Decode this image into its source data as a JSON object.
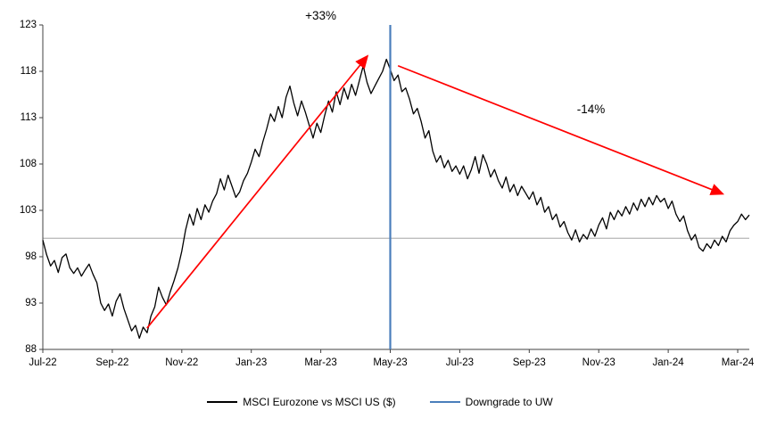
{
  "colors": {
    "line": "#000000",
    "vline": "#4a7ebb",
    "annotation": "#ff0000",
    "reference": "#a6a6a6",
    "axis": "#404040",
    "text": "#000000",
    "background": "#ffffff"
  },
  "legend": {
    "series_label": "MSCI Eurozone vs MSCI US ($)",
    "vline_label": "Downgrade to UW"
  },
  "chart_data": {
    "type": "line",
    "title": "",
    "xlabel": "",
    "ylabel": "",
    "x_tick_labels": [
      "Jul-22",
      "Sep-22",
      "Nov-22",
      "Jan-23",
      "Mar-23",
      "May-23",
      "Jul-23",
      "Sep-23",
      "Nov-23",
      "Jan-24",
      "Mar-24"
    ],
    "x_tick_indices": [
      0,
      18,
      36,
      54,
      72,
      90,
      108,
      126,
      144,
      162,
      180
    ],
    "y_ticks": [
      88,
      93,
      98,
      103,
      108,
      113,
      118,
      123
    ],
    "ylim": [
      88,
      123
    ],
    "grid": false,
    "legend_position": "bottom",
    "reference_line": 100,
    "vline_index": 90,
    "vline_label": "Downgrade to UW",
    "series": [
      {
        "name": "MSCI Eurozone vs MSCI US ($)",
        "values": [
          99.8,
          98.2,
          97.0,
          97.6,
          96.3,
          97.9,
          98.3,
          96.8,
          96.2,
          96.8,
          95.9,
          96.6,
          97.2,
          96.1,
          95.2,
          93.0,
          92.2,
          92.9,
          91.6,
          93.2,
          94.0,
          92.4,
          91.2,
          90.0,
          90.6,
          89.2,
          90.4,
          89.8,
          91.6,
          92.6,
          94.7,
          93.6,
          92.8,
          94.2,
          95.4,
          96.8,
          98.6,
          100.9,
          102.6,
          101.4,
          103.2,
          102.0,
          103.6,
          102.8,
          104.0,
          104.8,
          106.4,
          105.2,
          106.8,
          105.6,
          104.4,
          105.0,
          106.2,
          107.0,
          108.2,
          109.6,
          108.8,
          110.4,
          111.8,
          113.4,
          112.6,
          114.2,
          113.0,
          115.2,
          116.4,
          114.6,
          113.2,
          114.8,
          113.6,
          112.2,
          110.8,
          112.4,
          111.4,
          113.2,
          114.8,
          113.6,
          115.8,
          114.4,
          116.2,
          115.0,
          116.6,
          115.4,
          117.0,
          118.6,
          116.8,
          115.6,
          116.4,
          117.2,
          118.0,
          119.3,
          118.2,
          117.0,
          117.6,
          115.8,
          116.2,
          115.0,
          113.4,
          114.0,
          112.6,
          110.8,
          111.6,
          109.4,
          108.2,
          108.9,
          107.6,
          108.4,
          107.2,
          107.8,
          106.9,
          107.8,
          106.4,
          107.4,
          108.8,
          107.0,
          109.0,
          108.0,
          106.6,
          107.4,
          106.2,
          105.4,
          106.6,
          105.0,
          105.8,
          104.6,
          105.6,
          104.9,
          104.2,
          105.0,
          103.6,
          104.4,
          102.8,
          103.4,
          102.0,
          102.6,
          101.2,
          101.8,
          100.6,
          99.8,
          100.9,
          99.6,
          100.4,
          99.9,
          101.0,
          100.2,
          101.4,
          102.2,
          101.0,
          102.8,
          102.0,
          103.0,
          102.4,
          103.4,
          102.6,
          103.8,
          103.0,
          104.2,
          103.4,
          104.4,
          103.6,
          104.6,
          103.9,
          104.3,
          103.2,
          104.0,
          102.6,
          101.8,
          102.4,
          100.8,
          99.8,
          100.4,
          99.0,
          98.6,
          99.4,
          98.9,
          99.8,
          99.2,
          100.2,
          99.6,
          100.8,
          101.4,
          101.8,
          102.6,
          102.0,
          102.5
        ]
      }
    ],
    "annotations": [
      {
        "text": "+33%",
        "index": 72,
        "value": 123.9
      },
      {
        "text": "-14%",
        "index": 142,
        "value": 113.8
      }
    ],
    "arrows": [
      {
        "from_index": 27,
        "from_value": 90.3,
        "to_index": 84,
        "to_value": 119.6,
        "direction": "up"
      },
      {
        "from_index": 92,
        "from_value": 118.6,
        "to_index": 176,
        "to_value": 104.8,
        "direction": "down"
      }
    ]
  }
}
